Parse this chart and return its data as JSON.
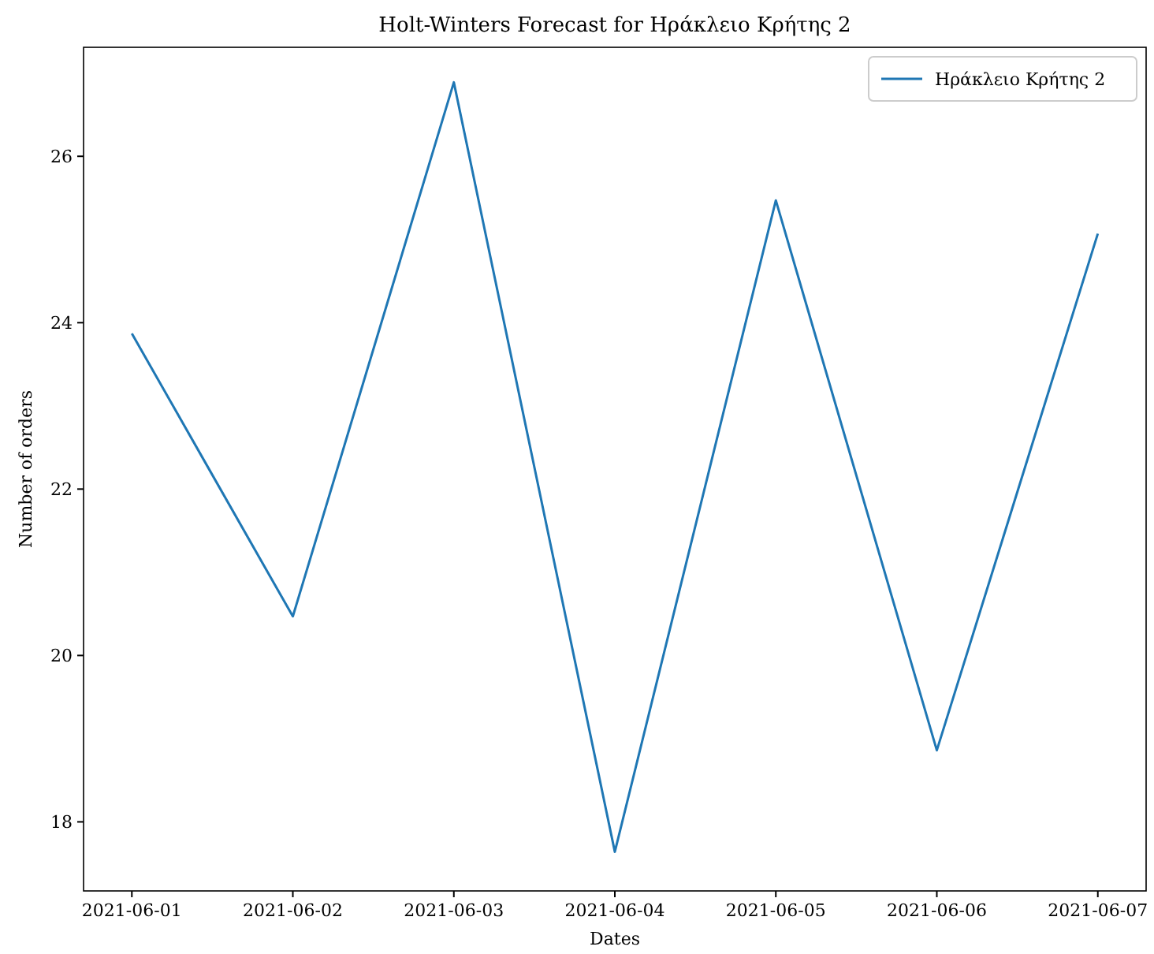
{
  "chart_data": {
    "type": "line",
    "title": "Holt-Winters Forecast for Ηράκλειο Κρήτης 2",
    "xlabel": "Dates",
    "ylabel": "Number of orders",
    "x": [
      "2021-06-01",
      "2021-06-02",
      "2021-06-03",
      "2021-06-04",
      "2021-06-05",
      "2021-06-06",
      "2021-06-07"
    ],
    "series": [
      {
        "name": "Ηράκλειο Κρήτης 2",
        "color": "#1f77b4",
        "values": [
          23.87,
          20.47,
          26.89,
          17.64,
          25.47,
          18.86,
          25.07
        ]
      }
    ],
    "xlim": [
      "2021-05-31T16:48",
      "2021-06-07T07:12"
    ],
    "xticks": [
      {
        "value": "2021-06-01",
        "label": "2021-06-01"
      },
      {
        "value": "2021-06-02",
        "label": "2021-06-02"
      },
      {
        "value": "2021-06-03",
        "label": "2021-06-03"
      },
      {
        "value": "2021-06-04",
        "label": "2021-06-04"
      },
      {
        "value": "2021-06-05",
        "label": "2021-06-05"
      },
      {
        "value": "2021-06-06",
        "label": "2021-06-06"
      },
      {
        "value": "2021-06-07",
        "label": "2021-06-07"
      }
    ],
    "ylim": [
      17.17,
      27.31
    ],
    "yticks": [
      18,
      20,
      22,
      24,
      26
    ],
    "legend": "top right",
    "grid": false,
    "marker": "none",
    "line_style": "solid"
  }
}
